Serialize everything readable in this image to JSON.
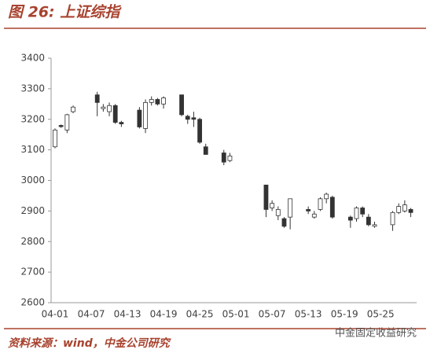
{
  "chart_data": {
    "type": "candlestick",
    "title": "图 26: 上证综指",
    "x": [
      "04-01",
      "04-02",
      "04-03",
      "04-04",
      "04-08",
      "04-09",
      "04-10",
      "04-11",
      "04-12",
      "04-15",
      "04-16",
      "04-17",
      "04-18",
      "04-19",
      "04-22",
      "04-23",
      "04-24",
      "04-25",
      "04-26",
      "04-29",
      "04-30",
      "05-06",
      "05-07",
      "05-08",
      "05-09",
      "05-10",
      "05-13",
      "05-14",
      "05-15",
      "05-16",
      "05-17",
      "05-20",
      "05-21",
      "05-22",
      "05-23",
      "05-24",
      "05-27",
      "05-28",
      "05-29",
      "05-30"
    ],
    "open": [
      3110,
      3180,
      3165,
      3225,
      3280,
      3235,
      3225,
      3245,
      3190,
      3230,
      3170,
      3255,
      3265,
      3250,
      3280,
      3210,
      3205,
      3200,
      3110,
      3090,
      3065,
      2985,
      2910,
      2885,
      2875,
      2880,
      2905,
      2880,
      2905,
      2940,
      2945,
      2880,
      2875,
      2910,
      2880,
      2850,
      2855,
      2895,
      2900,
      2905
    ],
    "high": [
      3170,
      3183,
      3218,
      3245,
      3290,
      3250,
      3255,
      3250,
      3195,
      3240,
      3265,
      3275,
      3270,
      3275,
      3280,
      3215,
      3225,
      3205,
      3120,
      3100,
      3090,
      2985,
      2935,
      2915,
      2880,
      2940,
      2915,
      2900,
      2945,
      2960,
      2950,
      2885,
      2915,
      2915,
      2890,
      2865,
      2900,
      2925,
      2935,
      2910
    ],
    "low": [
      3105,
      3172,
      3155,
      3220,
      3210,
      3225,
      3210,
      3185,
      3175,
      3170,
      3155,
      3245,
      3245,
      3235,
      3210,
      3185,
      3175,
      3120,
      3085,
      3050,
      3060,
      2880,
      2900,
      2870,
      2845,
      2840,
      2890,
      2875,
      2900,
      2925,
      2875,
      2845,
      2865,
      2880,
      2850,
      2845,
      2835,
      2890,
      2895,
      2880
    ],
    "close": [
      3165,
      3176,
      3215,
      3240,
      3255,
      3240,
      3245,
      3190,
      3185,
      3175,
      3255,
      3265,
      3250,
      3270,
      3215,
      3200,
      3200,
      3125,
      3085,
      3060,
      3080,
      2905,
      2925,
      2905,
      2850,
      2940,
      2900,
      2890,
      2940,
      2955,
      2880,
      2870,
      2910,
      2890,
      2855,
      2855,
      2895,
      2915,
      2920,
      2895
    ],
    "xticks": [
      "04-01",
      "04-07",
      "04-13",
      "04-19",
      "04-25",
      "05-01",
      "05-07",
      "05-13",
      "05-19",
      "05-25"
    ],
    "ylim": [
      2600,
      3400
    ],
    "yticks": [
      2600,
      2700,
      2800,
      2900,
      3000,
      3100,
      3200,
      3300,
      3400
    ],
    "up_color": "#ffffff",
    "down_color": "#333333",
    "edge_color": "#333333",
    "source": "资料来源：wind，中金公司研究",
    "watermark": "中金固定收益研究"
  }
}
